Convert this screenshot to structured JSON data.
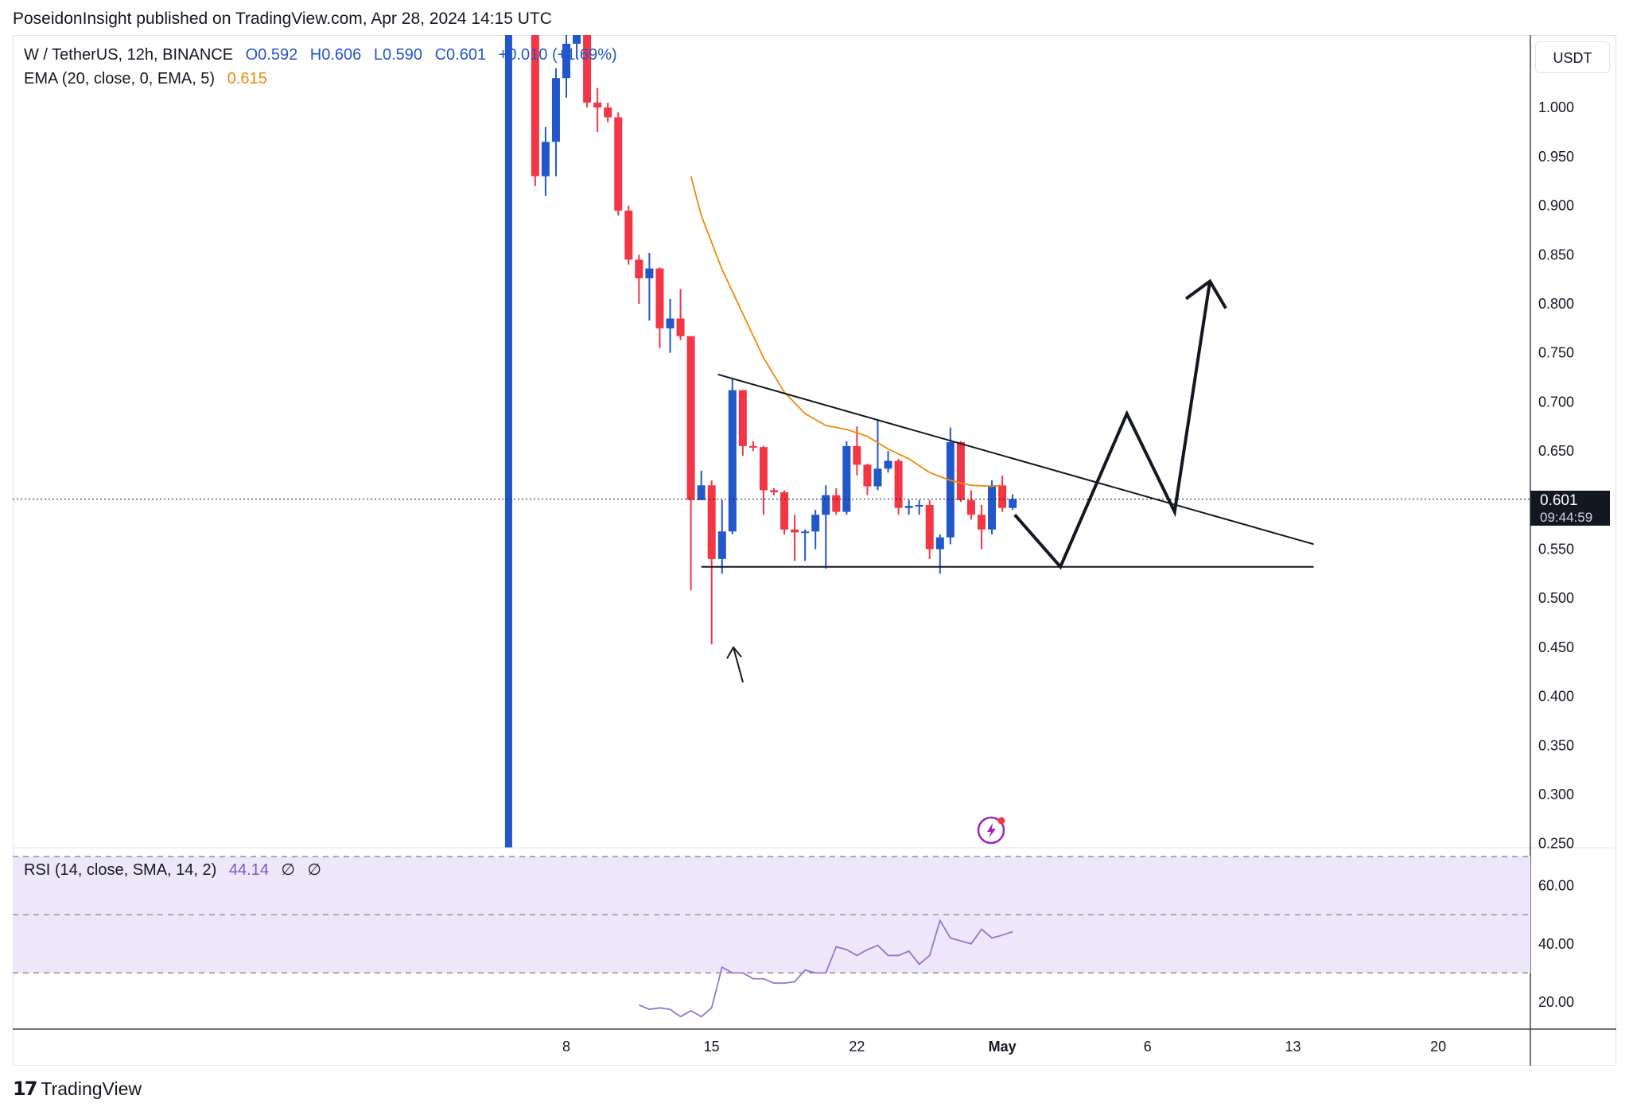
{
  "header": {
    "publisher_line": "PoseidonInsight published on TradingView.com, Apr 28, 2024 14:15 UTC"
  },
  "legend": {
    "symbol": "W / TetherUS, 12h, BINANCE",
    "open": "O0.592",
    "high": "H0.606",
    "low": "L0.590",
    "close": "C0.601",
    "change": "+0.010 (+1.69%)",
    "ema_label": "EMA (20, close, 0, EMA, 5)",
    "ema_value": "0.615",
    "rsi_label": "RSI (14, close, SMA, 14, 2)",
    "rsi_value": "44.14",
    "rsi_extra_1": "∅",
    "rsi_extra_2": "∅"
  },
  "currency": "USDT",
  "last_price": {
    "price": "0.601",
    "countdown": "09:44:59"
  },
  "footer": {
    "brand": "TradingView",
    "mark": "17"
  },
  "colors": {
    "up": "#2157c9",
    "down": "#f23645",
    "ema": "#f0880a",
    "rsi": "#9575cd",
    "rsi_band": "#ede7f9"
  },
  "chart_data": [
    {
      "type": "candlestick",
      "title": "W / TetherUS, 12h, BINANCE",
      "y_ticks": [
        "1.000",
        "0.950",
        "0.900",
        "0.850",
        "0.800",
        "0.750",
        "0.700",
        "0.650",
        "0.550",
        "0.500",
        "0.450",
        "0.400",
        "0.350",
        "0.300",
        "0.250"
      ],
      "ylim": [
        0.25,
        1.07
      ],
      "x_ticks": [
        {
          "label": "8",
          "day": 8
        },
        {
          "label": "15",
          "day": 15
        },
        {
          "label": "22",
          "day": 22
        },
        {
          "label": "May",
          "day": 29
        },
        {
          "label": "6",
          "day": 36
        },
        {
          "label": "13",
          "day": 43
        },
        {
          "label": "20",
          "day": 50
        }
      ],
      "candles": [
        {
          "day": 6.5,
          "o": 1.085,
          "h": 1.09,
          "l": 0.92,
          "c": 0.93
        },
        {
          "day": 7.0,
          "o": 0.93,
          "h": 0.98,
          "l": 0.91,
          "c": 0.965
        },
        {
          "day": 7.5,
          "o": 0.965,
          "h": 1.04,
          "l": 0.93,
          "c": 1.03
        },
        {
          "day": 8.0,
          "o": 1.03,
          "h": 1.075,
          "l": 1.01,
          "c": 1.065
        },
        {
          "day": 8.5,
          "o": 1.065,
          "h": 1.08,
          "l": 1.05,
          "c": 1.075
        },
        {
          "day": 9.0,
          "o": 1.075,
          "h": 1.085,
          "l": 1.0,
          "c": 1.005
        },
        {
          "day": 9.5,
          "o": 1.005,
          "h": 1.02,
          "l": 0.975,
          "c": 1.0
        },
        {
          "day": 10.0,
          "o": 1.0,
          "h": 1.005,
          "l": 0.985,
          "c": 0.99
        },
        {
          "day": 10.5,
          "o": 0.99,
          "h": 0.995,
          "l": 0.89,
          "c": 0.895
        },
        {
          "day": 11.0,
          "o": 0.895,
          "h": 0.9,
          "l": 0.84,
          "c": 0.845
        },
        {
          "day": 11.5,
          "o": 0.845,
          "h": 0.85,
          "l": 0.8,
          "c": 0.826
        },
        {
          "day": 12.0,
          "o": 0.826,
          "h": 0.852,
          "l": 0.783,
          "c": 0.836
        },
        {
          "day": 12.5,
          "o": 0.836,
          "h": 0.837,
          "l": 0.755,
          "c": 0.775
        },
        {
          "day": 13.0,
          "o": 0.775,
          "h": 0.805,
          "l": 0.75,
          "c": 0.785
        },
        {
          "day": 13.5,
          "o": 0.785,
          "h": 0.815,
          "l": 0.763,
          "c": 0.767
        },
        {
          "day": 14.0,
          "o": 0.767,
          "h": 0.767,
          "l": 0.508,
          "c": 0.6
        },
        {
          "day": 14.5,
          "o": 0.6,
          "h": 0.63,
          "l": 0.6,
          "c": 0.615
        },
        {
          "day": 15.0,
          "o": 0.615,
          "h": 0.62,
          "l": 0.453,
          "c": 0.54
        },
        {
          "day": 15.5,
          "o": 0.54,
          "h": 0.6,
          "l": 0.525,
          "c": 0.568
        },
        {
          "day": 16.0,
          "o": 0.568,
          "h": 0.723,
          "l": 0.565,
          "c": 0.712
        },
        {
          "day": 16.5,
          "o": 0.712,
          "h": 0.712,
          "l": 0.645,
          "c": 0.655
        },
        {
          "day": 17.0,
          "o": 0.655,
          "h": 0.66,
          "l": 0.65,
          "c": 0.654
        },
        {
          "day": 17.5,
          "o": 0.654,
          "h": 0.655,
          "l": 0.585,
          "c": 0.61
        },
        {
          "day": 18.0,
          "o": 0.61,
          "h": 0.612,
          "l": 0.605,
          "c": 0.608
        },
        {
          "day": 18.5,
          "o": 0.608,
          "h": 0.61,
          "l": 0.565,
          "c": 0.57
        },
        {
          "day": 19.0,
          "o": 0.57,
          "h": 0.585,
          "l": 0.538,
          "c": 0.567
        },
        {
          "day": 19.5,
          "o": 0.567,
          "h": 0.57,
          "l": 0.538,
          "c": 0.568
        },
        {
          "day": 20.0,
          "o": 0.568,
          "h": 0.59,
          "l": 0.55,
          "c": 0.585
        },
        {
          "day": 20.5,
          "o": 0.585,
          "h": 0.615,
          "l": 0.53,
          "c": 0.605
        },
        {
          "day": 21.0,
          "o": 0.605,
          "h": 0.612,
          "l": 0.585,
          "c": 0.588
        },
        {
          "day": 21.5,
          "o": 0.588,
          "h": 0.66,
          "l": 0.585,
          "c": 0.655
        },
        {
          "day": 22.0,
          "o": 0.655,
          "h": 0.675,
          "l": 0.625,
          "c": 0.636
        },
        {
          "day": 22.5,
          "o": 0.636,
          "h": 0.637,
          "l": 0.605,
          "c": 0.614
        },
        {
          "day": 23.0,
          "o": 0.614,
          "h": 0.682,
          "l": 0.61,
          "c": 0.632
        },
        {
          "day": 23.5,
          "o": 0.632,
          "h": 0.65,
          "l": 0.628,
          "c": 0.64
        },
        {
          "day": 24.0,
          "o": 0.64,
          "h": 0.642,
          "l": 0.585,
          "c": 0.592
        },
        {
          "day": 24.5,
          "o": 0.592,
          "h": 0.6,
          "l": 0.585,
          "c": 0.594
        },
        {
          "day": 25.0,
          "o": 0.594,
          "h": 0.6,
          "l": 0.585,
          "c": 0.595
        },
        {
          "day": 25.5,
          "o": 0.595,
          "h": 0.6,
          "l": 0.54,
          "c": 0.55
        },
        {
          "day": 26.0,
          "o": 0.55,
          "h": 0.565,
          "l": 0.525,
          "c": 0.562
        },
        {
          "day": 26.5,
          "o": 0.562,
          "h": 0.674,
          "l": 0.555,
          "c": 0.659
        },
        {
          "day": 27.0,
          "o": 0.659,
          "h": 0.66,
          "l": 0.598,
          "c": 0.6
        },
        {
          "day": 27.5,
          "o": 0.6,
          "h": 0.61,
          "l": 0.58,
          "c": 0.585
        },
        {
          "day": 28.0,
          "o": 0.585,
          "h": 0.595,
          "l": 0.55,
          "c": 0.57
        },
        {
          "day": 28.5,
          "o": 0.57,
          "h": 0.62,
          "l": 0.565,
          "c": 0.615
        },
        {
          "day": 29.0,
          "o": 0.615,
          "h": 0.625,
          "l": 0.588,
          "c": 0.592
        },
        {
          "day": 29.5,
          "o": 0.592,
          "h": 0.606,
          "l": 0.59,
          "c": 0.601
        }
      ],
      "ema": {
        "days": [
          14.0,
          14.5,
          15.5,
          16.5,
          17.5,
          18.5,
          19.5,
          20.5,
          21.5,
          22.5,
          23.5,
          24.5,
          25.5,
          26.5,
          27.5,
          28.5,
          29.0
        ],
        "values": [
          0.93,
          0.89,
          0.835,
          0.79,
          0.745,
          0.71,
          0.688,
          0.676,
          0.672,
          0.665,
          0.652,
          0.642,
          0.628,
          0.62,
          0.615,
          0.614,
          0.615
        ]
      },
      "pattern_lines": {
        "descending_trendline": {
          "from_day": 15.3,
          "from_price": 0.728,
          "to_day": 44.0,
          "to_price": 0.555
        },
        "support_line": {
          "from_day": 14.5,
          "to_day": 44.0,
          "price": 0.532
        }
      },
      "projection_path": {
        "days": [
          29.6,
          31.8,
          35.0,
          37.3,
          39.0
        ],
        "prices": [
          0.585,
          0.532,
          0.688,
          0.588,
          0.823
        ]
      },
      "vertical_marker_day": 5.2,
      "current_price": 0.601
    },
    {
      "type": "line",
      "title": "RSI (14, close, SMA, 14, 2)",
      "y_ticks": [
        "60.00",
        "40.00",
        "20.00"
      ],
      "ylim": [
        10,
        73
      ],
      "band": [
        30,
        70
      ],
      "midline": 50,
      "days": [
        11.5,
        12.0,
        12.5,
        13.0,
        13.5,
        14.0,
        14.5,
        15.0,
        15.5,
        16.0,
        16.5,
        17.0,
        17.5,
        18.0,
        18.5,
        19.0,
        19.5,
        20.0,
        20.5,
        21.0,
        21.5,
        22.0,
        22.5,
        23.0,
        23.5,
        24.0,
        24.5,
        25.0,
        25.5,
        26.0,
        26.5,
        27.0,
        27.5,
        28.0,
        28.5,
        29.0,
        29.5
      ],
      "values": [
        19,
        17.5,
        18,
        17.5,
        15,
        17,
        15,
        18,
        32,
        30,
        30,
        28,
        28,
        26.5,
        26.5,
        27,
        31,
        30,
        30,
        39,
        38,
        36,
        38,
        39.5,
        36,
        36,
        37.5,
        33,
        36,
        48,
        42,
        41,
        40,
        45,
        42,
        43,
        44.14
      ]
    }
  ]
}
